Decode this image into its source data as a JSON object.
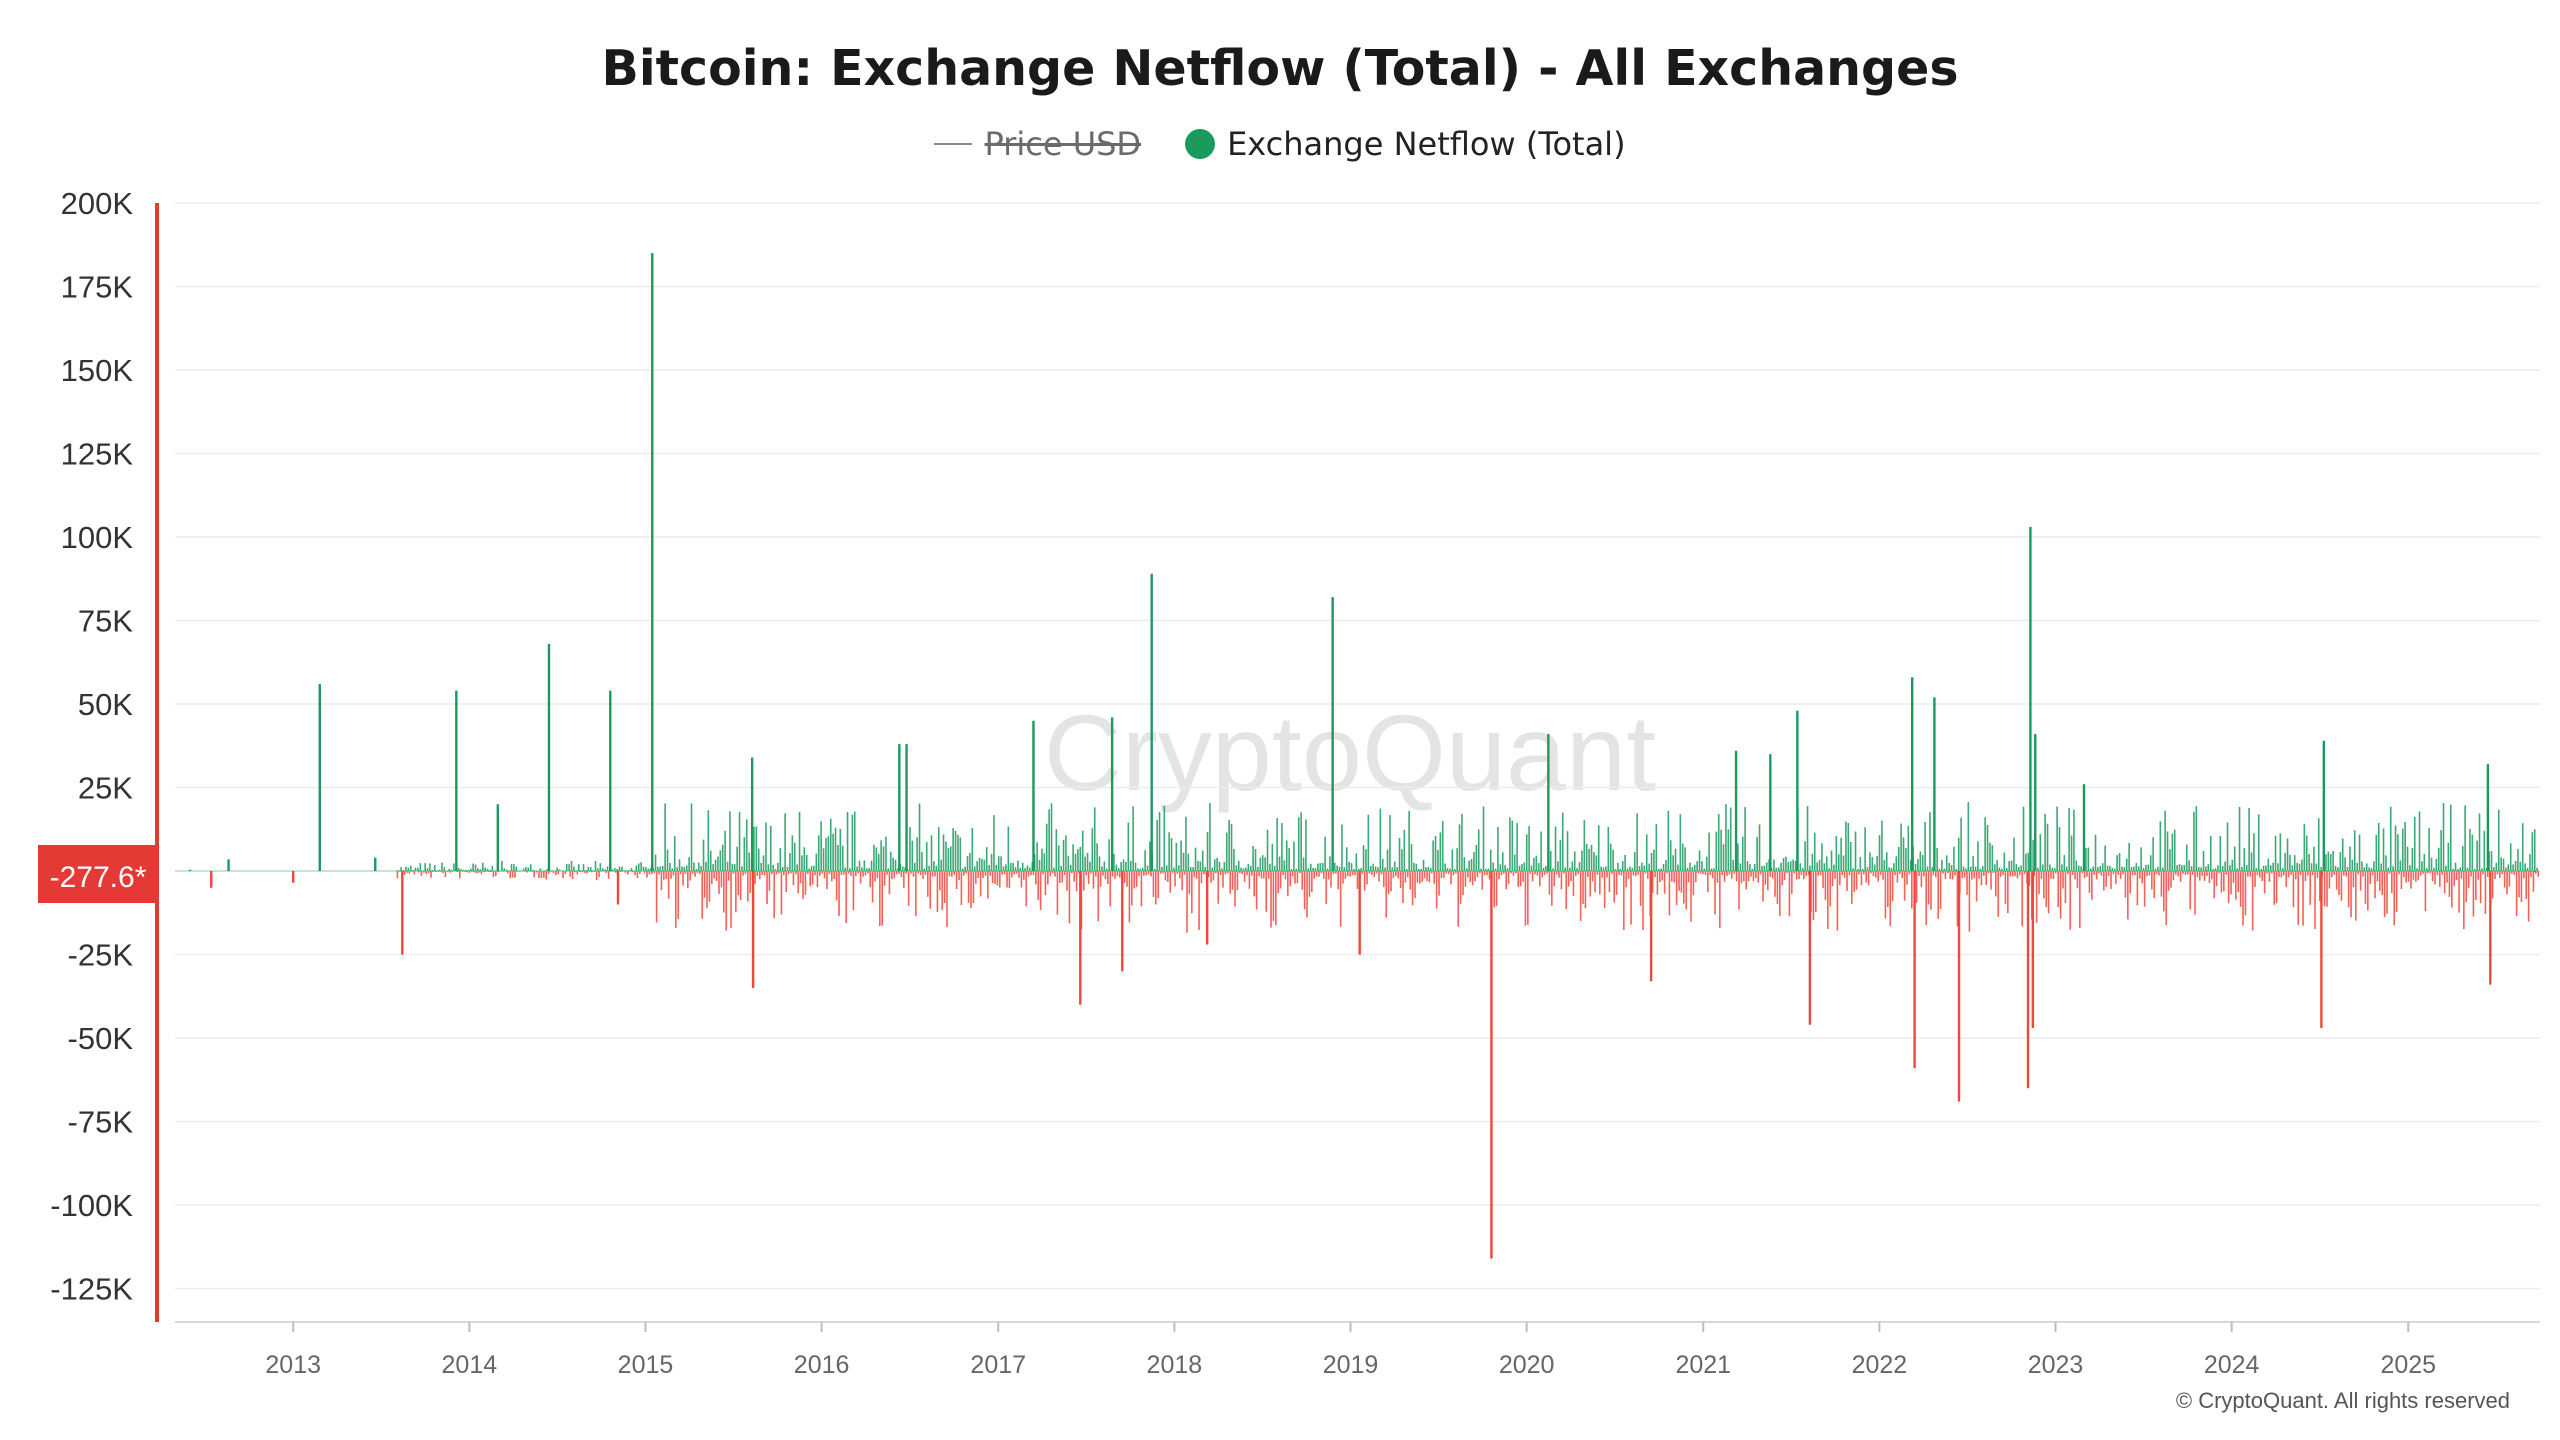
{
  "title": "Bitcoin: Exchange Netflow (Total) - All Exchanges",
  "legend": {
    "price_label": "Price USD",
    "netflow_label": "Exchange Netflow (Total)"
  },
  "watermark": "CryptoQuant",
  "copyright": "© CryptoQuant. All rights reserved",
  "current_value_label": "-277.6*",
  "colors": {
    "inflow": "#1a9a5c",
    "outflow": "#f0473c",
    "axis_accent": "#e53935",
    "grid": "#ececec",
    "watermark": "#e4e4e4"
  },
  "chart_data": {
    "type": "bar",
    "title": "Bitcoin: Exchange Netflow (Total) - All Exchanges",
    "xlabel": "",
    "ylabel": "",
    "x_range": [
      "2012-05-01",
      "2025-10-01"
    ],
    "ylim": [
      -135000,
      200000
    ],
    "y_ticks": [
      200000,
      175000,
      150000,
      125000,
      100000,
      75000,
      50000,
      25000,
      0,
      -25000,
      -50000,
      -75000,
      -100000,
      -125000
    ],
    "y_tick_labels": [
      "200K",
      "175K",
      "150K",
      "125K",
      "100K",
      "75K",
      "50K",
      "25K",
      "",
      "-25K",
      "-50K",
      "-75K",
      "-100K",
      "-125K"
    ],
    "x_ticks": [
      "2013-01-01",
      "2014-01-01",
      "2015-01-01",
      "2016-01-01",
      "2017-01-01",
      "2018-01-01",
      "2019-01-01",
      "2020-01-01",
      "2021-01-01",
      "2022-01-01",
      "2023-01-01",
      "2024-01-01",
      "2025-01-01"
    ],
    "x_tick_labels": [
      "2013",
      "2014",
      "2015",
      "2016",
      "2017",
      "2018",
      "2019",
      "2020",
      "2021",
      "2022",
      "2023",
      "2024",
      "2025"
    ],
    "grid": true,
    "legend_position": "top-center",
    "series": [
      {
        "name": "Exchange Netflow (Total)",
        "color_positive": "#1a9a5c",
        "color_negative": "#f0473c",
        "points": [
          [
            "2012-06-01",
            400
          ],
          [
            "2012-07-15",
            -5000
          ],
          [
            "2012-08-20",
            3500
          ],
          [
            "2013-01-01",
            -3500
          ],
          [
            "2013-02-25",
            56000
          ],
          [
            "2013-06-20",
            4000
          ],
          [
            "2013-08-15",
            -25000
          ],
          [
            "2013-12-05",
            54000
          ],
          [
            "2014-03-01",
            20000
          ],
          [
            "2014-06-15",
            68000
          ],
          [
            "2014-10-20",
            54000
          ],
          [
            "2014-11-05",
            -10000
          ],
          [
            "2015-01-15",
            185000
          ],
          [
            "2015-08-10",
            34000
          ],
          [
            "2015-08-12",
            -35000
          ],
          [
            "2016-06-10",
            38000
          ],
          [
            "2016-06-25",
            38000
          ],
          [
            "2017-03-15",
            45000
          ],
          [
            "2017-06-20",
            -40000
          ],
          [
            "2017-08-25",
            46000
          ],
          [
            "2017-09-15",
            -30000
          ],
          [
            "2017-11-15",
            89000
          ],
          [
            "2018-03-10",
            -22000
          ],
          [
            "2018-11-25",
            82000
          ],
          [
            "2019-01-20",
            -25000
          ],
          [
            "2019-10-20",
            -116000
          ],
          [
            "2020-02-15",
            41000
          ],
          [
            "2020-09-15",
            -33000
          ],
          [
            "2021-03-10",
            36000
          ],
          [
            "2021-05-20",
            35000
          ],
          [
            "2021-07-15",
            48000
          ],
          [
            "2021-08-10",
            -46000
          ],
          [
            "2022-03-10",
            58000
          ],
          [
            "2022-03-15",
            -59000
          ],
          [
            "2022-04-25",
            52000
          ],
          [
            "2022-06-15",
            -69000
          ],
          [
            "2022-11-05",
            -65000
          ],
          [
            "2022-11-10",
            103000
          ],
          [
            "2022-11-15",
            -47000
          ],
          [
            "2022-11-20",
            41000
          ],
          [
            "2023-03-01",
            26000
          ],
          [
            "2024-07-05",
            -47000
          ],
          [
            "2024-07-10",
            39000
          ],
          [
            "2025-06-15",
            32000
          ],
          [
            "2025-06-20",
            -34000
          ],
          [
            "2025-09-20",
            -277.6
          ]
        ]
      }
    ]
  }
}
